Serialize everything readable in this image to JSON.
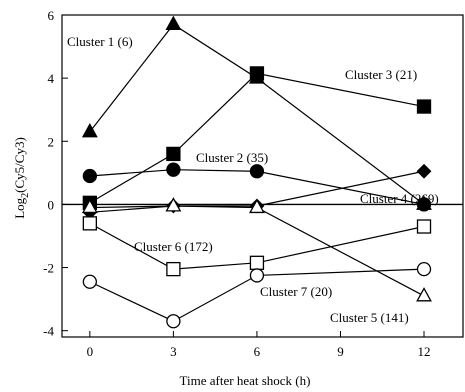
{
  "chart_data": {
    "type": "line",
    "title": "",
    "xlabel": "Time after heat shock (h)",
    "ylabel": "Log 2(Cy5/Cy3)",
    "ylabel_main": "Log",
    "ylabel_sub": "2",
    "ylabel_rest": "(Cy5/Cy3)",
    "x": [
      0,
      3,
      6,
      12
    ],
    "xlim": [
      -1,
      13.4
    ],
    "ylim": [
      -4.2,
      6
    ],
    "xticks": [
      0,
      3,
      6,
      9,
      12
    ],
    "yticks": [
      -4,
      -2,
      0,
      2,
      4,
      6
    ],
    "zero_line": true,
    "grid": false,
    "series": [
      {
        "name": "Cluster 1 (6)",
        "marker": "triangle-filled",
        "values": [
          2.3,
          5.7,
          4.0,
          0.0
        ]
      },
      {
        "name": "Cluster 3 (21)",
        "marker": "square-filled",
        "values": [
          0.05,
          1.6,
          4.15,
          3.1
        ]
      },
      {
        "name": "Cluster 2 (35)",
        "marker": "circle-filled",
        "values": [
          0.9,
          1.1,
          1.05,
          0.0
        ]
      },
      {
        "name": "Cluster 4 (269)",
        "marker": "diamond-filled",
        "values": [
          -0.25,
          -0.05,
          -0.05,
          1.05
        ]
      },
      {
        "name": "Cluster 5 (141)",
        "marker": "triangle-open",
        "values": [
          -0.1,
          -0.05,
          -0.1,
          -2.9
        ]
      },
      {
        "name": "Cluster 6 (172)",
        "marker": "square-open",
        "values": [
          -0.6,
          -2.05,
          -1.85,
          -0.7
        ]
      },
      {
        "name": "Cluster 7 (20)",
        "marker": "circle-open",
        "values": [
          -2.45,
          -3.7,
          -2.25,
          -2.05
        ]
      }
    ]
  }
}
